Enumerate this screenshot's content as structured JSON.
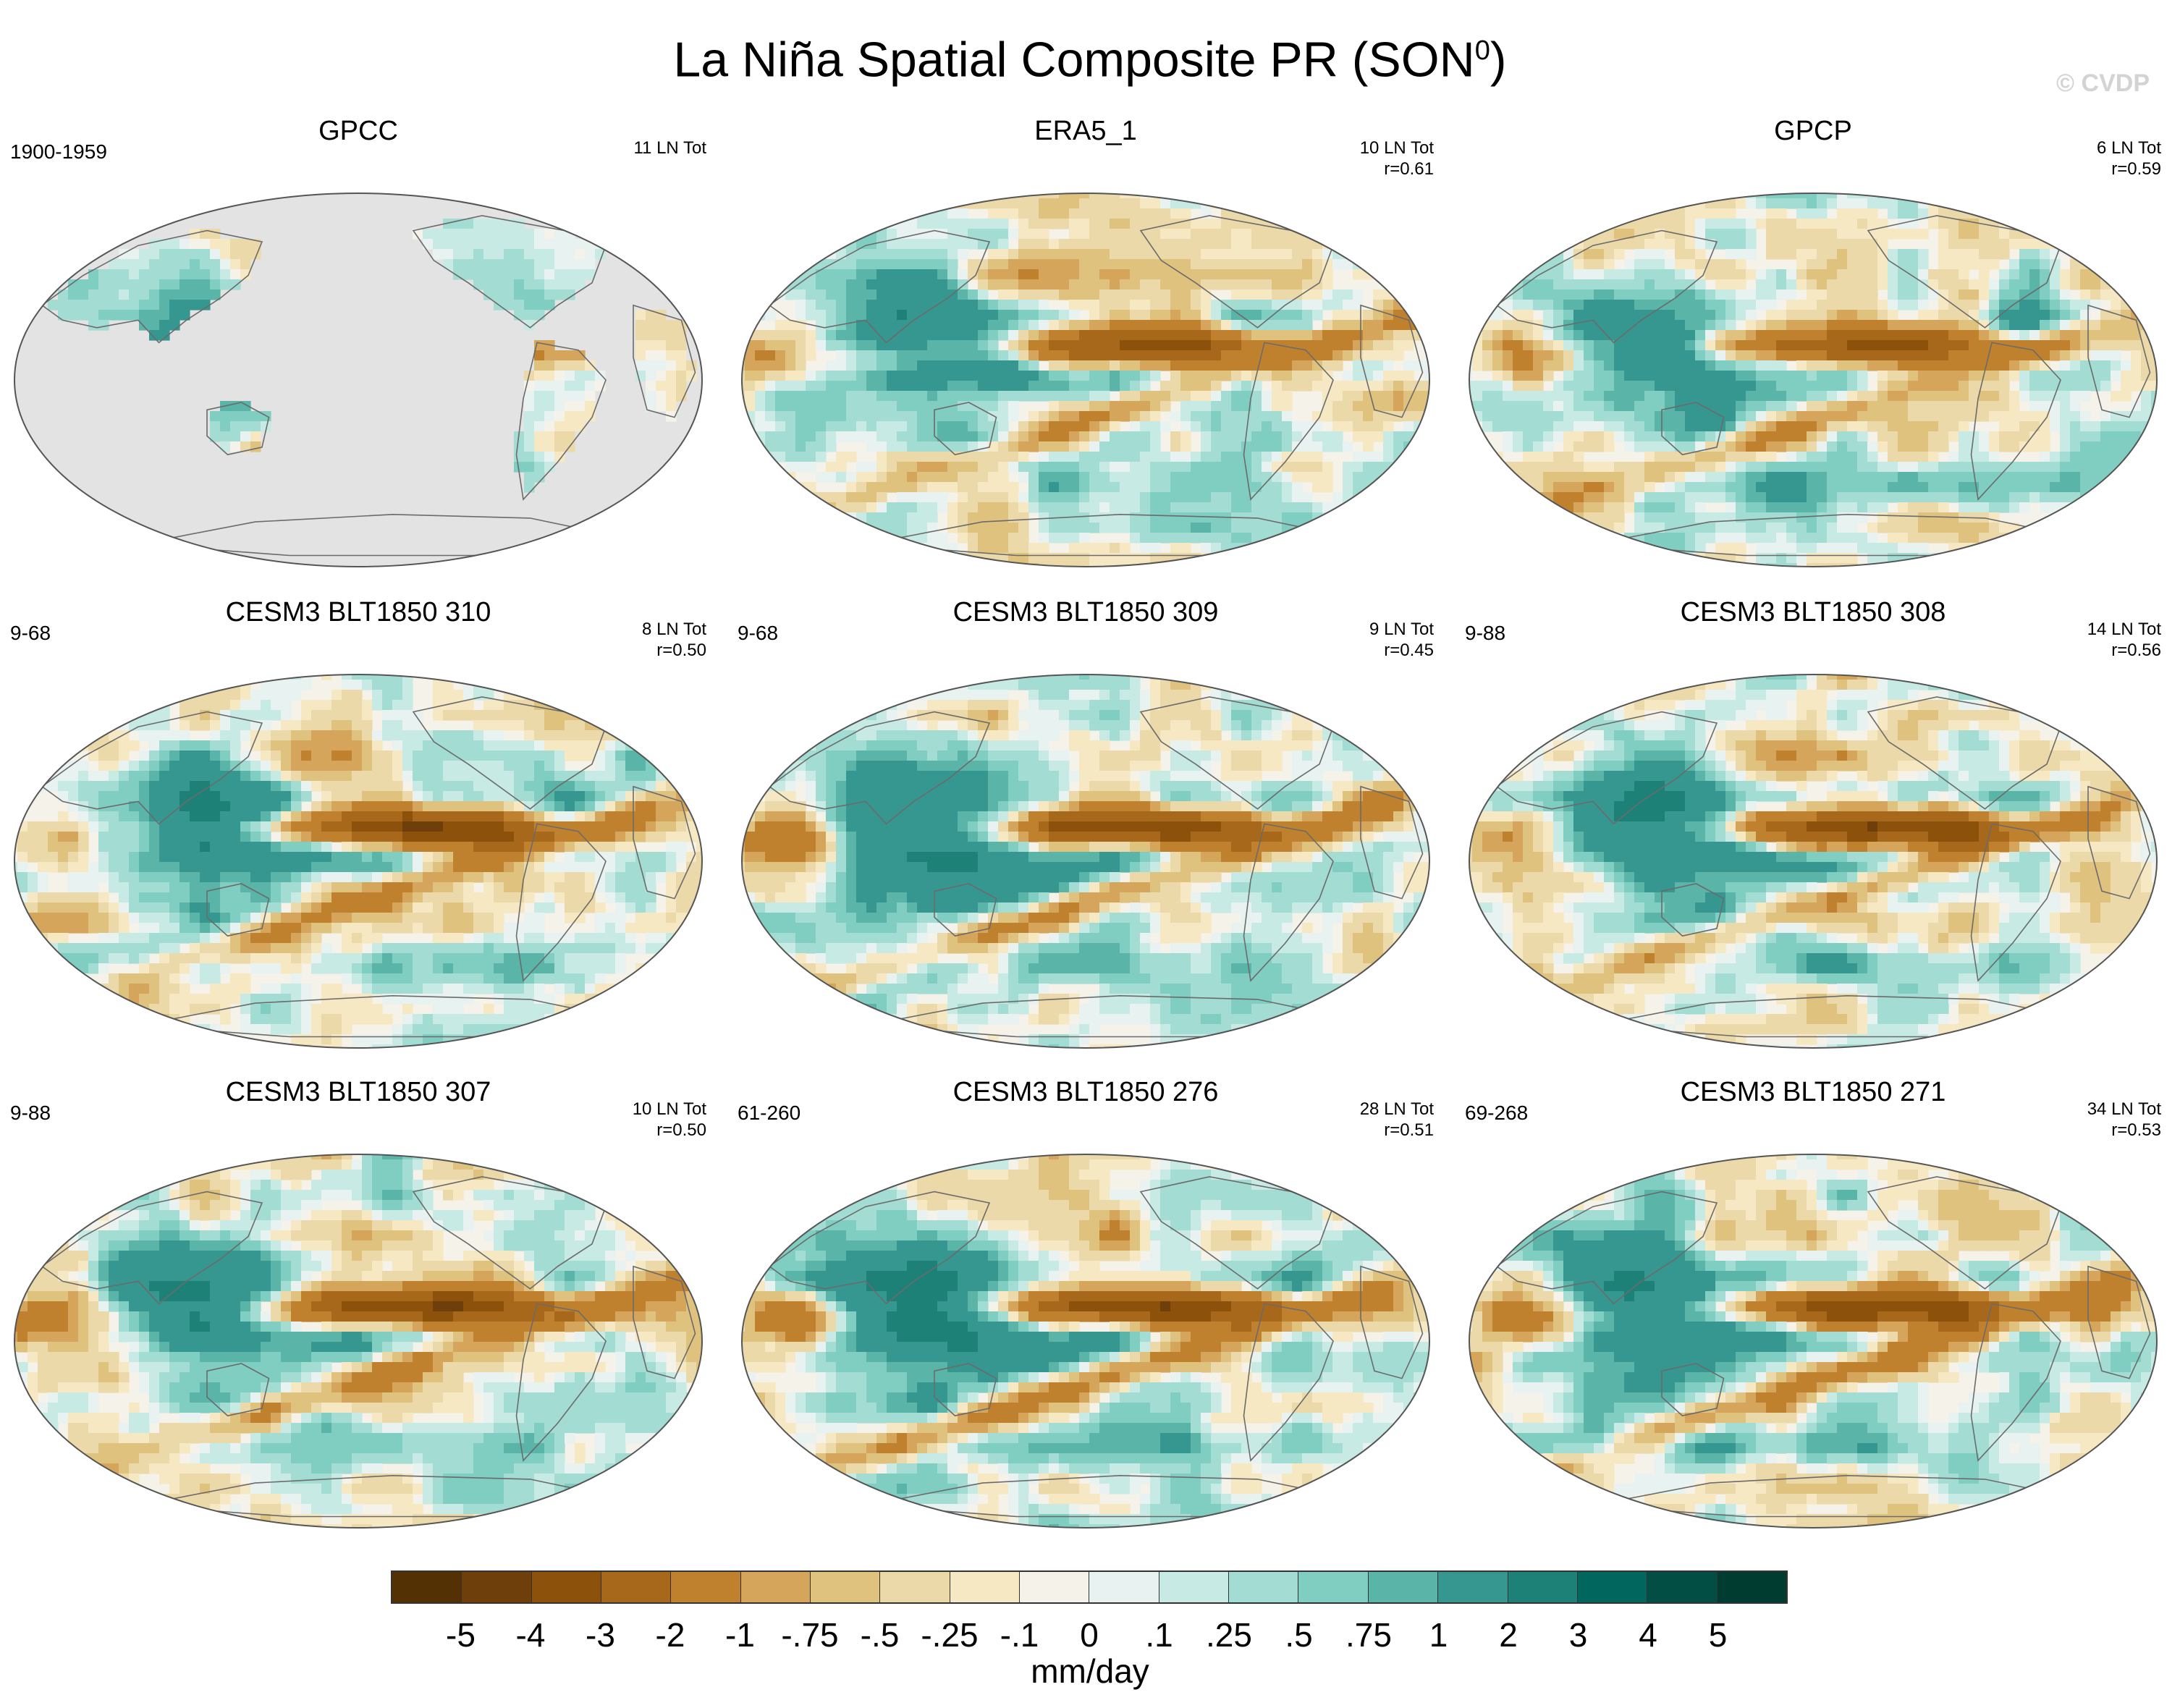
{
  "title": "La Niña Spatial Composite PR (SON",
  "title_superscript": "0",
  "title_close": ")",
  "watermark": "© CVDP",
  "panels": [
    {
      "title": "GPCC",
      "period": "1900-1959",
      "count": "11 LN Tot",
      "corr": "",
      "type": "land"
    },
    {
      "title": "ERA5_1",
      "period": "",
      "count": "10 LN Tot",
      "corr": "r=0.61",
      "type": "obs"
    },
    {
      "title": "GPCP",
      "period": "",
      "count": "6 LN Tot",
      "corr": "r=0.59",
      "type": "obs"
    },
    {
      "title": "CESM3 BLT1850 310",
      "period": "9-68",
      "count": "8 LN Tot",
      "corr": "r=0.50",
      "type": "model"
    },
    {
      "title": "CESM3 BLT1850 309",
      "period": "9-68",
      "count": "9 LN Tot",
      "corr": "r=0.45",
      "type": "model"
    },
    {
      "title": "CESM3 BLT1850 308",
      "period": "9-88",
      "count": "14 LN Tot",
      "corr": "r=0.56",
      "type": "model"
    },
    {
      "title": "CESM3 BLT1850 307",
      "period": "9-88",
      "count": "10 LN Tot",
      "corr": "r=0.50",
      "type": "model"
    },
    {
      "title": "CESM3 BLT1850 276",
      "period": "61-260",
      "count": "28 LN Tot",
      "corr": "r=0.51",
      "type": "model"
    },
    {
      "title": "CESM3 BLT1850 271",
      "period": "69-268",
      "count": "34 LN Tot",
      "corr": "r=0.53",
      "type": "model"
    }
  ],
  "colorbar": {
    "labels": [
      "-5",
      "-4",
      "-3",
      "-2",
      "-1",
      "-.75",
      "-.5",
      "-.25",
      "-.1",
      "0",
      ".1",
      ".25",
      ".5",
      ".75",
      "1",
      "2",
      "3",
      "4",
      "5"
    ],
    "colors": [
      "#543005",
      "#6f3f0b",
      "#8c510a",
      "#a8681b",
      "#bf812d",
      "#d4a55b",
      "#dfc27d",
      "#ecd9aa",
      "#f6e8c3",
      "#f5f2ea",
      "#e8f3f1",
      "#c7eae5",
      "#a3dcd3",
      "#80cdc1",
      "#5ab4a8",
      "#35978f",
      "#1e8178",
      "#01665e",
      "#024e44",
      "#003c30"
    ],
    "units": "mm/day"
  }
}
